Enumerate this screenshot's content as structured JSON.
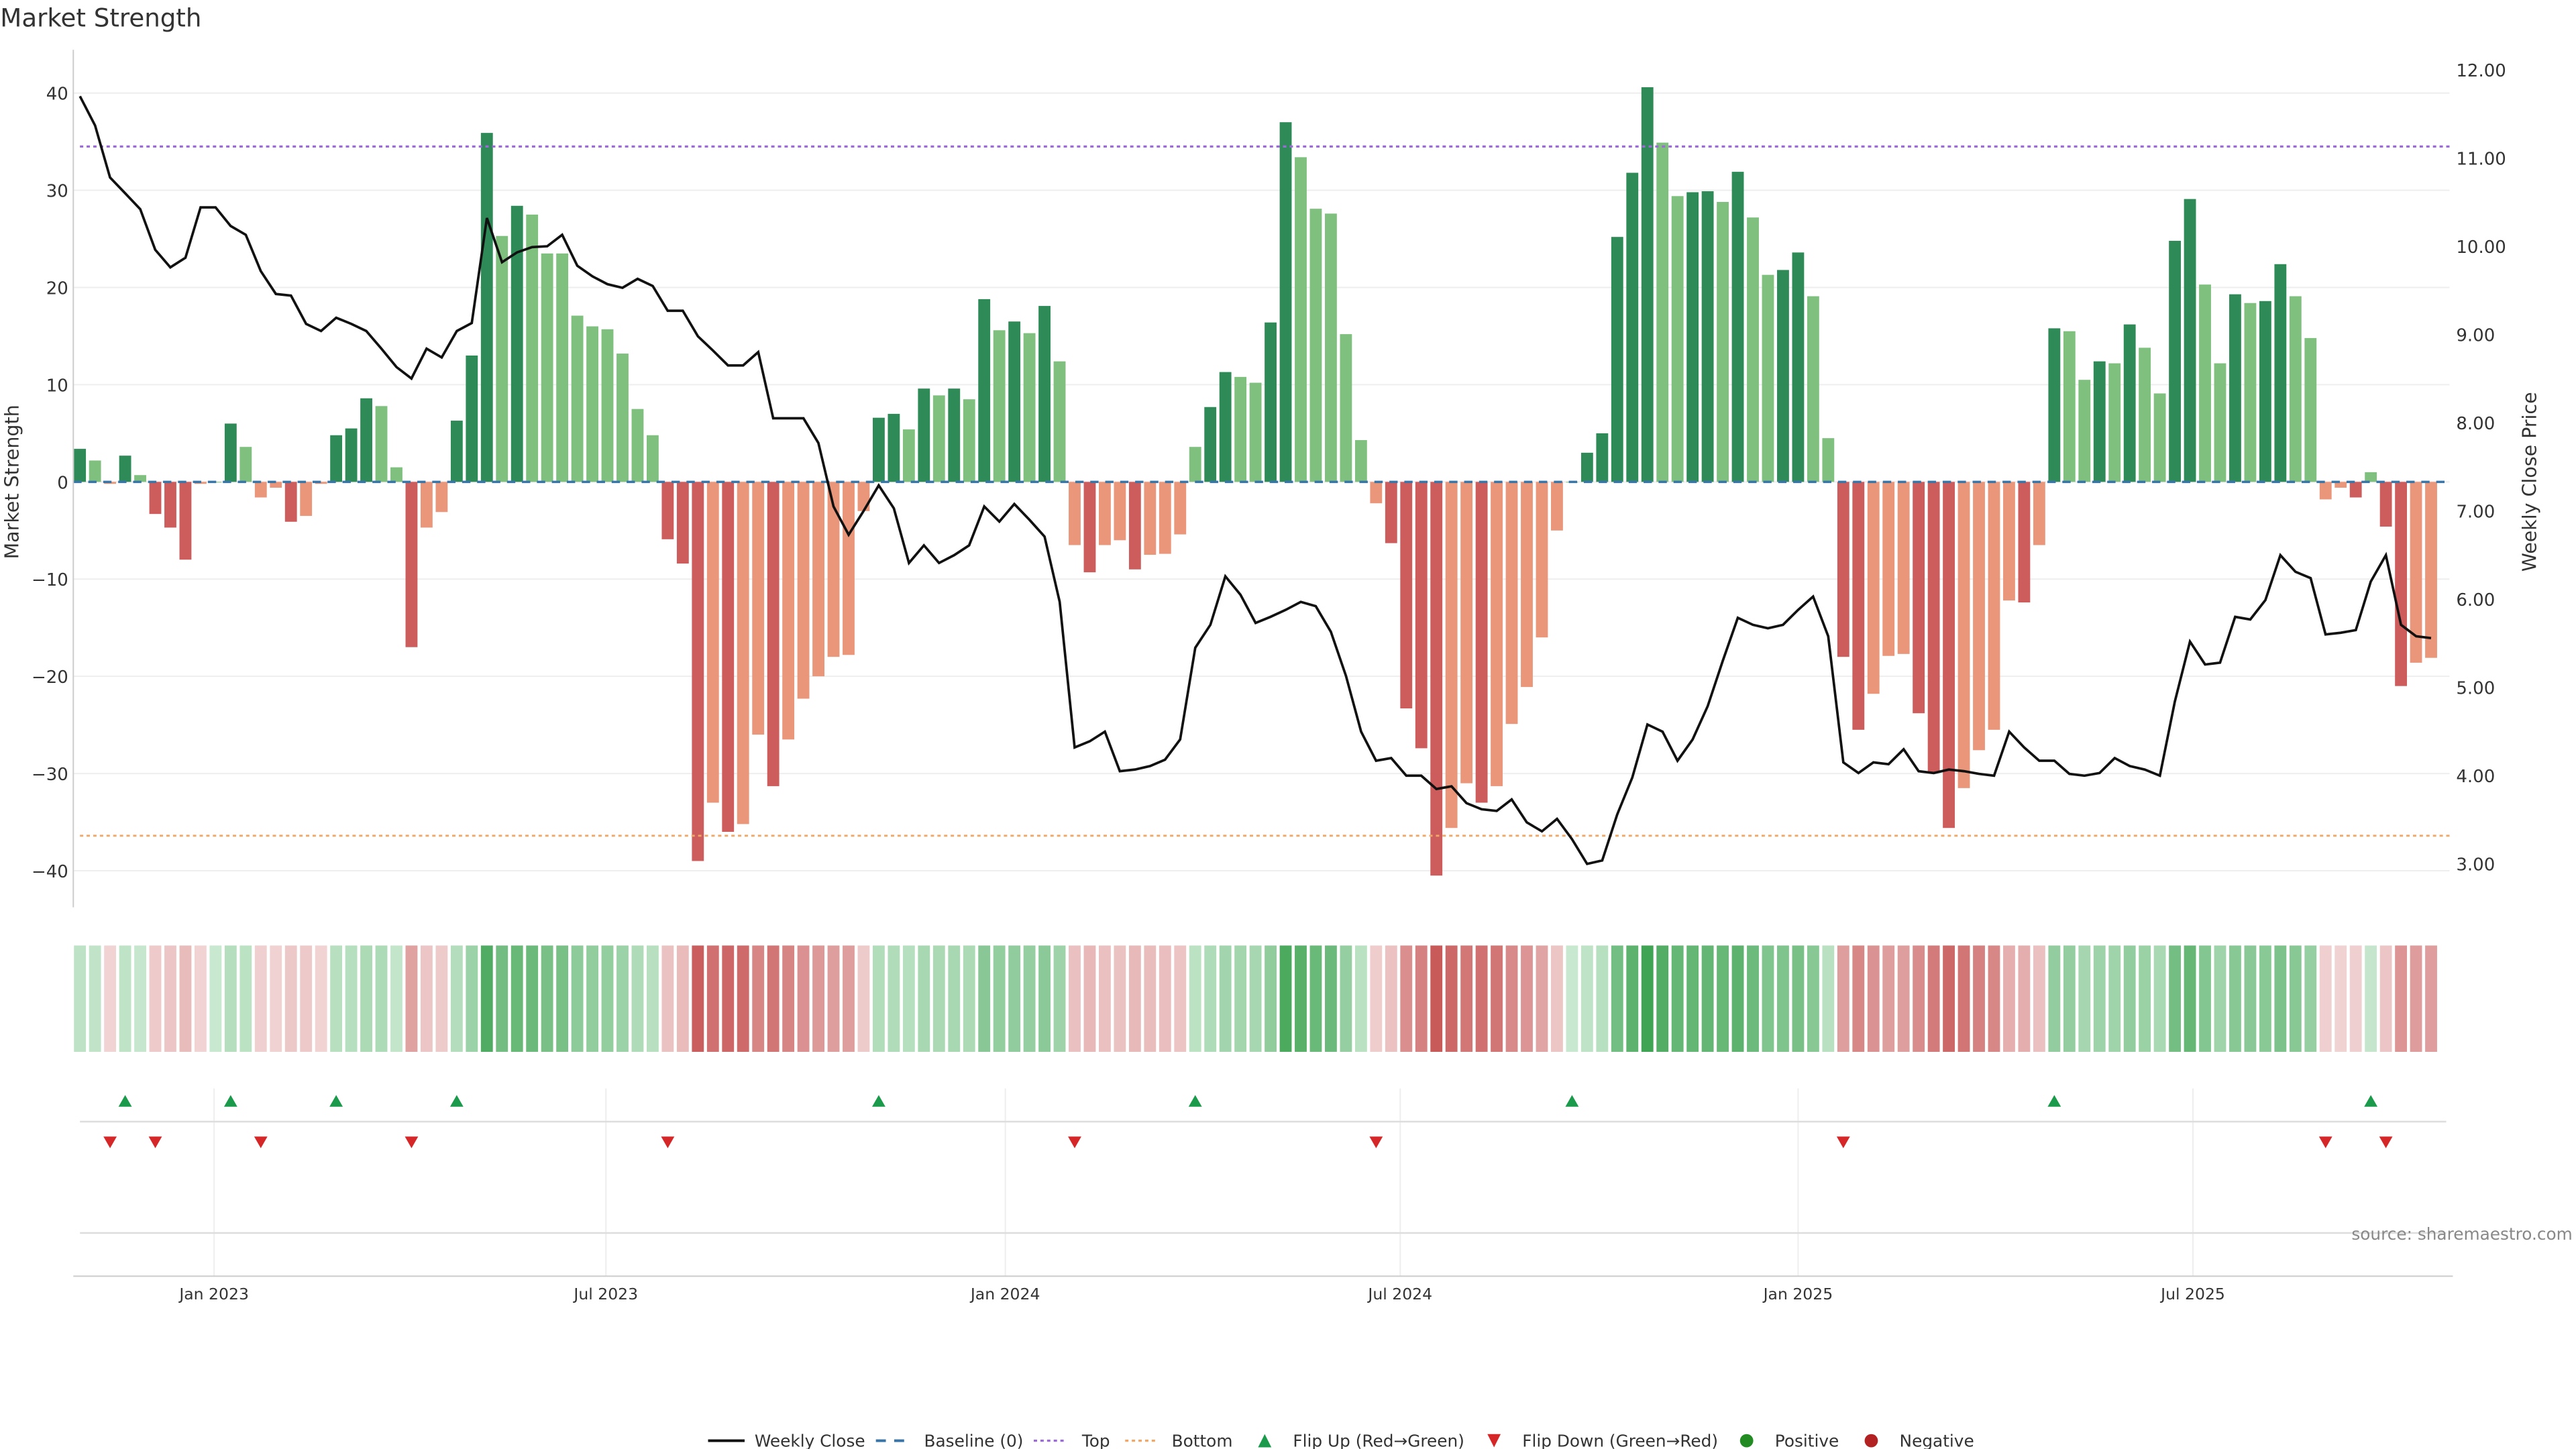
{
  "chart_data": {
    "type": "bar",
    "title": "Market Strength",
    "ylabel": "Market Strength",
    "y2label": "Weekly Close Price",
    "ylim": [
      -44,
      44
    ],
    "y2lim": [
      2.6,
      12.3
    ],
    "yticks": [
      "40",
      "30",
      "20",
      "10",
      "0",
      "−10",
      "−20",
      "−30",
      "−40"
    ],
    "ytick_values": [
      40,
      30,
      20,
      10,
      0,
      -10,
      -20,
      -30,
      -40
    ],
    "y2ticks": [
      "12.00",
      "11.00",
      "10.00",
      "9.00",
      "8.00",
      "7.00",
      "6.00",
      "5.00",
      "4.00",
      "3.00"
    ],
    "y2tick_values": [
      12,
      11,
      10,
      9,
      8,
      7,
      6,
      5,
      4,
      3
    ],
    "xticks": [
      {
        "label": "Jan 2023",
        "week": 8.9
      },
      {
        "label": "Jul 2023",
        "week": 34.9
      },
      {
        "label": "Jan 2024",
        "week": 61.4
      },
      {
        "label": "Jul 2024",
        "week": 87.6
      },
      {
        "label": "Jan 2025",
        "week": 114.0
      },
      {
        "label": "Jul 2025",
        "week": 140.2
      }
    ],
    "top_level": 34.5,
    "bottom_level": -36.4,
    "baseline": 0,
    "strength": [
      3.4,
      2.2,
      -0.2,
      2.7,
      0.7,
      -3.3,
      -4.7,
      -8,
      -0.2,
      0,
      6,
      3.6,
      -1.6,
      -0.6,
      -4.1,
      -3.5,
      -0.2,
      4.8,
      5.5,
      8.6,
      7.8,
      1.5,
      -17,
      -4.7,
      -3.1,
      6.3,
      13,
      35.9,
      25.3,
      28.4,
      27.5,
      23.5,
      23.5,
      17.1,
      16,
      15.7,
      13.2,
      7.5,
      4.8,
      -5.9,
      -8.4,
      -39,
      -33,
      -36,
      -35.2,
      -26,
      -31.3,
      -26.5,
      -22.3,
      -20,
      -18,
      -17.8,
      -3,
      6.6,
      7,
      5.4,
      9.6,
      8.9,
      9.6,
      8.5,
      18.8,
      15.6,
      16.5,
      15.3,
      18.1,
      12.4,
      -6.5,
      -9.3,
      -6.5,
      -6,
      -9,
      -7.5,
      -7.4,
      -5.4,
      3.6,
      7.7,
      11.3,
      10.8,
      10.2,
      16.4,
      37,
      33.4,
      28.1,
      27.6,
      15.2,
      4.3,
      -2.2,
      -6.3,
      -23.3,
      -27.4,
      -40.5,
      -35.6,
      -31,
      -33,
      -31.3,
      -24.9,
      -21.1,
      -16,
      -5,
      0,
      3,
      5,
      25.2,
      31.8,
      40.6,
      34.9,
      29.4,
      29.8,
      29.9,
      28.8,
      31.9,
      27.2,
      21.3,
      21.8,
      23.6,
      19.1,
      4.5,
      -18,
      -25.5,
      -21.8,
      -17.9,
      -17.7,
      -23.8,
      -29.9,
      -35.6,
      -31.5,
      -27.6,
      -25.5,
      -12.2,
      -12.4,
      -6.5,
      15.8,
      15.5,
      10.5,
      12.4,
      12.2,
      16.2,
      13.8,
      9.1,
      24.8,
      29.1,
      20.3,
      12.2,
      19.3,
      18.4,
      18.6,
      22.4,
      19.1,
      14.8,
      -1.8,
      -0.6,
      -1.6,
      1,
      -4.6,
      -21,
      -18.6,
      -18.1
    ],
    "weekly_close": [
      11.7,
      11.37,
      10.78,
      10.6,
      10.42,
      9.96,
      9.76,
      9.87,
      10.44,
      10.44,
      10.23,
      10.13,
      9.72,
      9.46,
      9.44,
      9.12,
      9.04,
      9.19,
      9.12,
      9.04,
      8.84,
      8.63,
      8.5,
      8.84,
      8.74,
      9.04,
      9.13,
      10.32,
      9.82,
      9.93,
      9.99,
      10.0,
      10.13,
      9.78,
      9.66,
      9.57,
      9.53,
      9.63,
      9.55,
      9.27,
      9.27,
      8.98,
      8.82,
      8.65,
      8.65,
      8.8,
      8.05,
      8.05,
      8.05,
      7.77,
      7.05,
      6.73,
      7.0,
      7.29,
      7.03,
      6.41,
      6.61,
      6.41,
      6.5,
      6.61,
      7.05,
      6.88,
      7.08,
      6.9,
      6.71,
      5.97,
      4.32,
      4.39,
      4.5,
      4.05,
      4.07,
      4.11,
      4.18,
      4.41,
      5.45,
      5.71,
      6.26,
      6.05,
      5.73,
      5.8,
      5.88,
      5.97,
      5.92,
      5.63,
      5.13,
      4.5,
      4.17,
      4.2,
      4.0,
      4.0,
      3.85,
      3.88,
      3.69,
      3.62,
      3.6,
      3.73,
      3.47,
      3.37,
      3.51,
      3.28,
      3.0,
      3.04,
      3.56,
      3.98,
      4.58,
      4.5,
      4.17,
      4.41,
      4.79,
      5.3,
      5.79,
      5.71,
      5.67,
      5.71,
      5.88,
      6.03,
      5.58,
      4.15,
      4.03,
      4.15,
      4.13,
      4.3,
      4.05,
      4.03,
      4.07,
      4.05,
      4.02,
      4.0,
      4.5,
      4.32,
      4.17,
      4.17,
      4.02,
      4.0,
      4.03,
      4.2,
      4.11,
      4.07,
      4.0,
      4.84,
      5.52,
      5.26,
      5.28,
      5.8,
      5.77,
      5.99,
      6.5,
      6.31,
      6.24,
      5.6,
      5.62,
      5.65,
      6.2,
      6.5,
      5.71,
      5.58,
      5.56
    ],
    "flip_up_weeks": [
      3,
      10,
      17,
      25,
      53,
      74,
      99,
      131,
      152
    ],
    "flip_down_weeks": [
      2,
      5,
      12,
      22,
      39,
      66,
      86,
      117,
      149,
      153
    ],
    "legend": {
      "placement": "bottom-center",
      "items": [
        "Weekly Close",
        "Baseline (0)",
        "Top",
        "Bottom",
        "Flip Up (Red→Green)",
        "Flip Down (Green→Red)",
        "Positive",
        "Negative"
      ]
    },
    "source": "source: sharemaestro.com"
  },
  "colors": {
    "strong_green": "#2e8b57",
    "weak_green": "#7fc07f",
    "strong_red": "#cd5c5c",
    "weak_red": "#e9967a",
    "top": "#9b6bd6",
    "bottom": "#f0a868",
    "baseline": "#3a75a8",
    "flip_up": "#1a9a4a",
    "flip_down": "#d62728",
    "positive": "#228b22",
    "negative": "#b22222"
  }
}
